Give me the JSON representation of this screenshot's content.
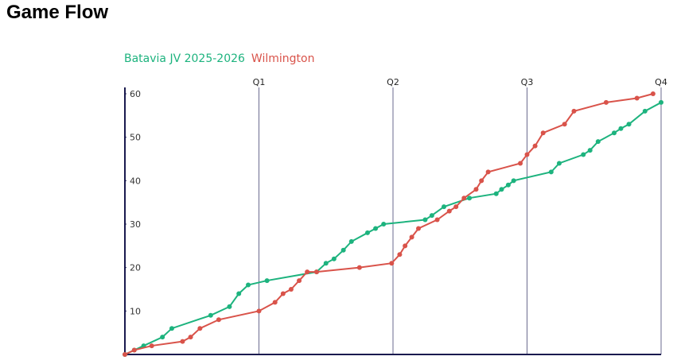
{
  "chart_data": {
    "type": "line",
    "title": "Game Flow",
    "xlim": [
      0,
      4
    ],
    "xticks": [
      {
        "value": 1,
        "label": "Q1"
      },
      {
        "value": 2,
        "label": "Q2"
      },
      {
        "value": 3,
        "label": "Q3"
      },
      {
        "value": 4,
        "label": "Q4"
      }
    ],
    "ylim": [
      0,
      60
    ],
    "yticks": [
      10,
      20,
      30,
      40,
      50,
      60
    ],
    "series": [
      {
        "name": "Batavia JV 2025-2026",
        "color": "#1db37e",
        "x": [
          0,
          0.07,
          0.14,
          0.28,
          0.35,
          0.64,
          0.78,
          0.85,
          0.92,
          1.06,
          1.43,
          1.5,
          1.56,
          1.63,
          1.69,
          1.81,
          1.87,
          1.93,
          2.24,
          2.29,
          2.38,
          2.57,
          2.77,
          2.81,
          2.86,
          2.9,
          3.18,
          3.24,
          3.42,
          3.47,
          3.53,
          3.65,
          3.7,
          3.76,
          3.88,
          4.0
        ],
        "values": [
          0,
          1,
          2,
          4,
          6,
          9,
          11,
          14,
          16,
          17,
          19,
          21,
          22,
          24,
          26,
          28,
          29,
          30,
          31,
          32,
          34,
          36,
          37,
          38,
          39,
          40,
          42,
          44,
          46,
          47,
          49,
          51,
          52,
          53,
          56,
          58
        ]
      },
      {
        "name": "Wilmington",
        "color": "#d9534a",
        "x": [
          0,
          0.07,
          0.2,
          0.43,
          0.49,
          0.56,
          0.7,
          1.0,
          1.12,
          1.18,
          1.24,
          1.3,
          1.36,
          1.43,
          1.75,
          1.99,
          2.05,
          2.09,
          2.14,
          2.19,
          2.33,
          2.42,
          2.47,
          2.53,
          2.62,
          2.66,
          2.71,
          2.95,
          3.0,
          3.06,
          3.12,
          3.28,
          3.35,
          3.59,
          3.82,
          3.94
        ],
        "values": [
          0,
          1,
          2,
          3,
          4,
          6,
          8,
          10,
          12,
          14,
          15,
          17,
          19,
          19,
          20,
          21,
          23,
          25,
          27,
          29,
          31,
          33,
          34,
          36,
          38,
          40,
          42,
          44,
          46,
          48,
          51,
          53,
          56,
          58,
          59,
          60
        ]
      }
    ]
  }
}
